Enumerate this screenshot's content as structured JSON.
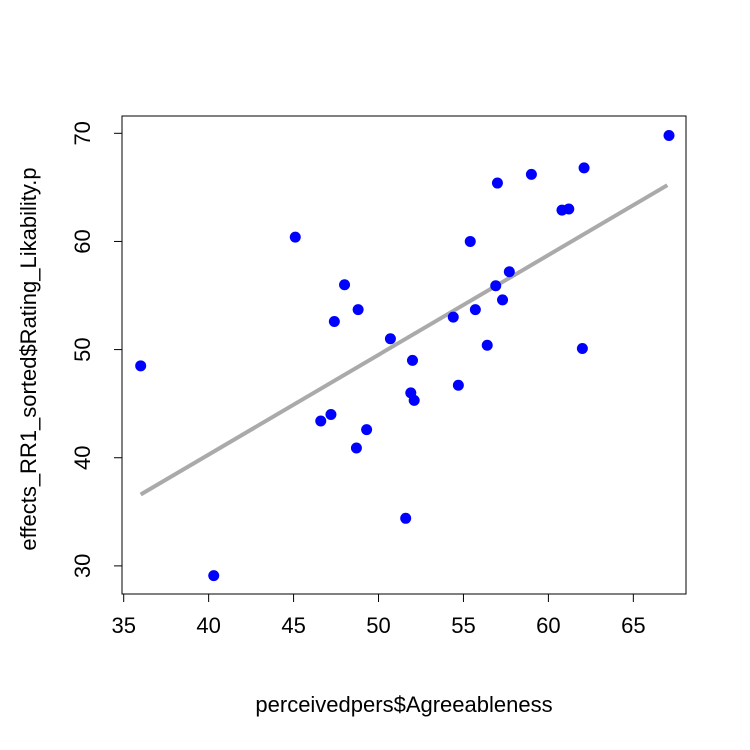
{
  "chart_data": {
    "type": "scatter",
    "title": "",
    "xlabel": "perceivedpers$Agreeableness",
    "ylabel": "effects_RR1_sorted$Rating_Likability.p",
    "xlim": [
      34.9,
      68.1
    ],
    "ylim": [
      27.4,
      71.6
    ],
    "xticks": [
      35,
      40,
      45,
      50,
      55,
      60,
      65
    ],
    "yticks": [
      30,
      40,
      50,
      60,
      70
    ],
    "grid": false,
    "point_color": "#0000ff",
    "line_color": "#aaaaaa",
    "points": [
      {
        "x": 36.0,
        "y": 48.5
      },
      {
        "x": 40.3,
        "y": 29.1
      },
      {
        "x": 45.1,
        "y": 60.4
      },
      {
        "x": 46.6,
        "y": 43.4
      },
      {
        "x": 47.2,
        "y": 44.0
      },
      {
        "x": 47.4,
        "y": 52.6
      },
      {
        "x": 48.0,
        "y": 56.0
      },
      {
        "x": 48.7,
        "y": 40.9
      },
      {
        "x": 48.8,
        "y": 53.7
      },
      {
        "x": 49.3,
        "y": 42.6
      },
      {
        "x": 50.7,
        "y": 51.0
      },
      {
        "x": 51.6,
        "y": 34.4
      },
      {
        "x": 51.9,
        "y": 46.0
      },
      {
        "x": 52.0,
        "y": 49.0
      },
      {
        "x": 52.1,
        "y": 45.3
      },
      {
        "x": 54.4,
        "y": 53.0
      },
      {
        "x": 54.7,
        "y": 46.7
      },
      {
        "x": 55.4,
        "y": 60.0
      },
      {
        "x": 55.7,
        "y": 53.7
      },
      {
        "x": 56.4,
        "y": 50.4
      },
      {
        "x": 56.9,
        "y": 55.9
      },
      {
        "x": 57.0,
        "y": 65.4
      },
      {
        "x": 57.3,
        "y": 54.6
      },
      {
        "x": 57.7,
        "y": 57.2
      },
      {
        "x": 59.0,
        "y": 66.2
      },
      {
        "x": 60.8,
        "y": 62.9
      },
      {
        "x": 61.2,
        "y": 63.0
      },
      {
        "x": 62.0,
        "y": 50.1
      },
      {
        "x": 62.1,
        "y": 66.8
      },
      {
        "x": 67.1,
        "y": 69.8
      }
    ],
    "regression_line": {
      "x": [
        36.0,
        67.0
      ],
      "y": [
        36.6,
        65.2
      ]
    }
  }
}
